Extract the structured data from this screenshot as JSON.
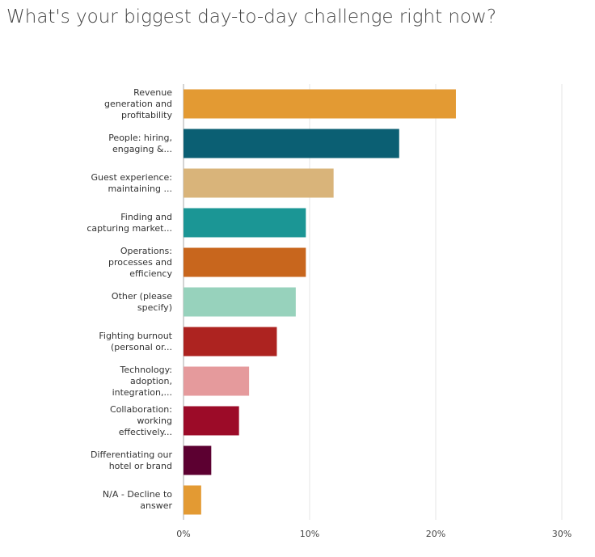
{
  "chart_data": {
    "type": "hbar",
    "title": "What's your biggest day-to-day challenge right now?",
    "categories": [
      "Revenue generation and profitability",
      "People: hiring, engaging &...",
      "Guest experience: maintaining ...",
      "Finding and capturing market...",
      "Operations: processes and efficiency",
      "Other (please specify)",
      "Fighting burnout (personal or...",
      "Technology: adoption, integration,...",
      "Collaboration: working effectively...",
      "Differentiating our hotel or brand",
      "N/A - Decline to answer"
    ],
    "values": [
      21.6,
      17.1,
      11.9,
      9.7,
      9.7,
      8.9,
      7.4,
      5.2,
      4.4,
      2.2,
      1.4
    ],
    "colors": [
      "#e39a33",
      "#0b5f73",
      "#d9b47a",
      "#1b9695",
      "#c8661d",
      "#97d2bc",
      "#ad2320",
      "#e59a9c",
      "#9c0b28",
      "#5c0031",
      "#e39a33"
    ],
    "xlim": [
      0,
      30
    ],
    "xticks": [
      {
        "value": 0,
        "label": "0%"
      },
      {
        "value": 10,
        "label": "10%"
      },
      {
        "value": 20,
        "label": "20%"
      },
      {
        "value": 30,
        "label": "30%"
      }
    ],
    "grid": true
  }
}
